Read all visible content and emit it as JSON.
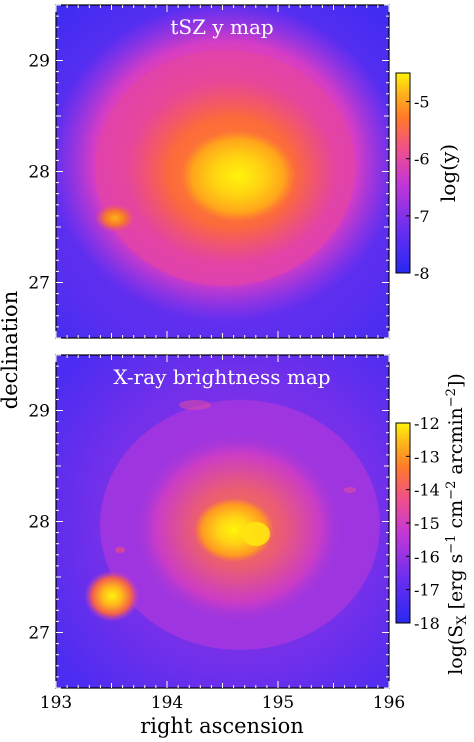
{
  "figure": {
    "shared_xlabel": "right ascension",
    "shared_ylabel": "declination"
  },
  "colors": {
    "cmap_low": "#2d2cf0",
    "cmap_mid": "#d538c9",
    "cmap_high_orange": "#ff7a2a",
    "cmap_top": "#fff40a",
    "frame": "#000000"
  },
  "chart_data": [
    {
      "type": "heatmap",
      "title": "tSZ y map",
      "xlabel": "right ascension",
      "ylabel": "declination",
      "xlim": [
        193,
        196
      ],
      "ylim": [
        26.5,
        29.5
      ],
      "x_ticks": [
        "193",
        "194",
        "195",
        "196"
      ],
      "y_ticks": [
        "27",
        "28",
        "29"
      ],
      "colorbar": {
        "label": "log(y)",
        "range": [
          -8,
          -4.5
        ],
        "ticks": [
          "-8",
          "-7",
          "-6",
          "-5"
        ]
      },
      "features": [
        {
          "name": "main cluster core",
          "ra": 194.65,
          "dec": 27.95,
          "level": -4.6
        },
        {
          "name": "secondary source",
          "ra": 193.55,
          "dec": 27.6,
          "level": -5.5
        },
        {
          "name": "background",
          "level": -7.3
        }
      ]
    },
    {
      "type": "heatmap",
      "title": "X-ray brightness map",
      "xlabel": "right ascension",
      "ylabel": "declination",
      "xlim": [
        193,
        196
      ],
      "ylim": [
        26.5,
        29.5
      ],
      "x_ticks": [
        "193",
        "194",
        "195",
        "196"
      ],
      "y_ticks": [
        "27",
        "28",
        "29"
      ],
      "colorbar": {
        "label": "log(S",
        "label_sub": "X",
        "label_mid": " [erg s",
        "label_sup1": "−1",
        "label_mid2": " cm",
        "label_sup2": "−2",
        "label_mid3": " arcmin",
        "label_sup3": "−2",
        "label_end": "])",
        "range": [
          -18,
          -12
        ],
        "ticks": [
          "-18",
          "-17",
          "-16",
          "-15",
          "-14",
          "-13",
          "-12"
        ]
      },
      "features": [
        {
          "name": "main cluster core",
          "ra": 194.6,
          "dec": 27.92,
          "level": -12.2
        },
        {
          "name": "secondary group",
          "ra": 193.5,
          "dec": 27.58,
          "level": -12.3
        },
        {
          "name": "background",
          "level": -16.0
        }
      ]
    }
  ]
}
